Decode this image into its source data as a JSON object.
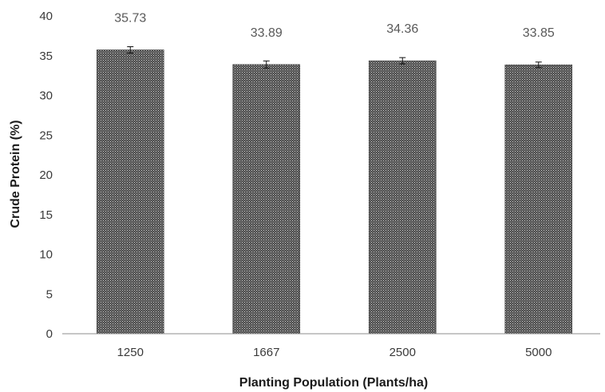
{
  "chart_data": {
    "type": "bar",
    "categories": [
      "1250",
      "1667",
      "2500",
      "5000"
    ],
    "values": [
      35.73,
      33.89,
      34.36,
      33.85
    ],
    "data_labels": [
      "35.73",
      "33.89",
      "34.36",
      "33.85"
    ],
    "error_bars": [
      0.4,
      0.45,
      0.4,
      0.35
    ],
    "xlabel": "Planting Population (Plants/ha)",
    "ylabel": "Crude Protein (%)",
    "ylim": [
      0,
      40
    ],
    "yticks": [
      "0",
      "5",
      "10",
      "15",
      "20",
      "25",
      "30",
      "35",
      "40"
    ],
    "grid": false,
    "legend": "none",
    "bar_fill": "#5a5a5a"
  }
}
